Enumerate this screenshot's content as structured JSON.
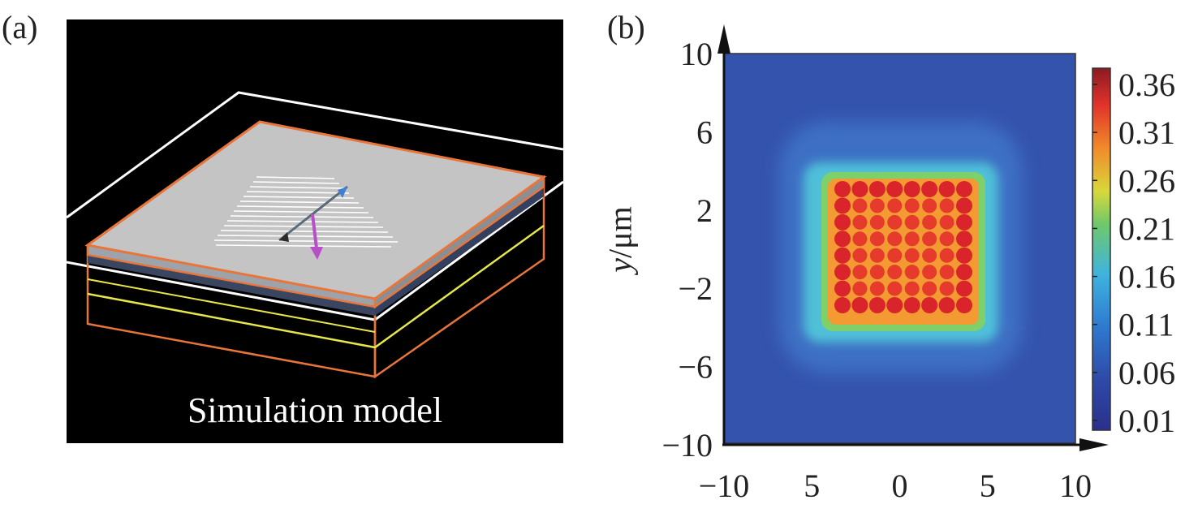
{
  "panel_a": {
    "label": "(a)",
    "caption": "Simulation model",
    "colors": {
      "background": "#000000",
      "top_face": "#c4c4c4",
      "frame_orange": "#e8753a",
      "frame_yellow": "#e6e84a",
      "frame_white": "#ffffff",
      "dipole_pink": "#b84fc8",
      "dipole_blue": "#3f7fd6"
    }
  },
  "panel_b": {
    "label": "(b)",
    "ylabel_var": "y",
    "ylabel_unit": "/μm",
    "y_ticks": [
      "10",
      "6",
      "2",
      "−2",
      "−6",
      "−10"
    ],
    "x_ticks": [
      "−10",
      "5",
      "0",
      "5",
      "10"
    ],
    "colorbar_ticks": [
      "0.36",
      "0.31",
      "0.26",
      "0.21",
      "0.16",
      "0.11",
      "0.06",
      "0.01"
    ],
    "colormap": "jet"
  },
  "chart_data": {
    "type": "heatmap",
    "title": "",
    "xlabel": "",
    "ylabel": "y/μm",
    "xlim": [
      -10,
      10
    ],
    "ylim": [
      -10,
      10
    ],
    "clim": [
      0.01,
      0.36
    ],
    "description_values": {
      "background": 0.06,
      "square_edge_halo": 0.13,
      "square_interior": 0.27,
      "spot_peak": 0.33,
      "square_half_width": 3.6,
      "spot_grid": 8
    }
  }
}
